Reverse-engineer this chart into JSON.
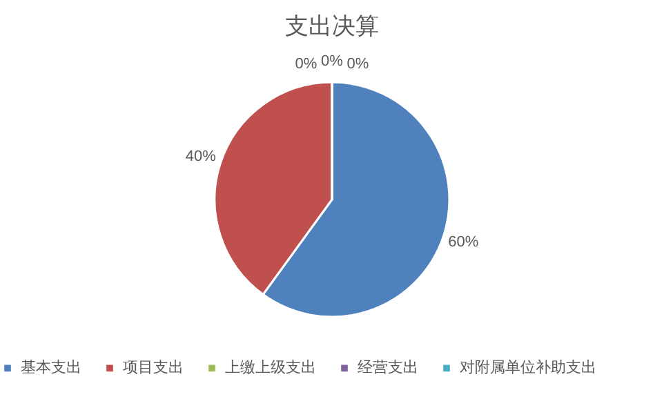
{
  "chart_data": {
    "type": "pie",
    "title": "支出决算",
    "categories": [
      "基本支出",
      "项目支出",
      "上缴上级支出",
      "经营支出",
      "对附属单位补助支出"
    ],
    "values": [
      60,
      40,
      0,
      0,
      0
    ],
    "colors": [
      "#4f81bd",
      "#c0504d",
      "#9bbb59",
      "#8064a2",
      "#4bacc6"
    ],
    "value_labels": [
      "60%",
      "40%",
      "0%",
      "0%",
      "0%"
    ],
    "legend": "bottom"
  }
}
